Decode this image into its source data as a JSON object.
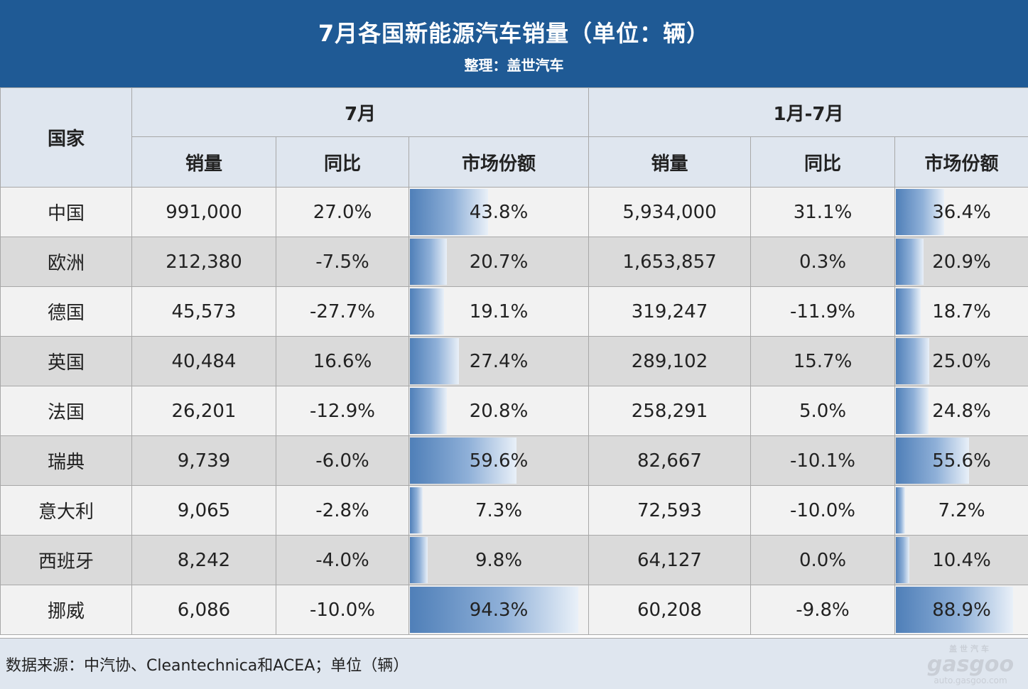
{
  "header": {
    "title": "7月各国新能源汽车销量（单位：辆）",
    "subtitle": "整理：盖世汽车"
  },
  "columns": {
    "country": "国家",
    "period_month": "7月",
    "period_ytd": "1月-7月",
    "sales": "销量",
    "yoy": "同比",
    "share": "市场份额"
  },
  "rows": [
    {
      "country": "中国",
      "jul_sales": "991,000",
      "jul_yoy": "27.0%",
      "jul_yoy_sign": "pos",
      "jul_share": "43.8%",
      "jul_share_value": 43.8,
      "ytd_sales": "5,934,000",
      "ytd_yoy": "31.1%",
      "ytd_yoy_sign": "pos",
      "ytd_share": "36.4%",
      "ytd_share_value": 36.4
    },
    {
      "country": "欧洲",
      "jul_sales": "212,380",
      "jul_yoy": "-7.5%",
      "jul_yoy_sign": "neg",
      "jul_share": "20.7%",
      "jul_share_value": 20.7,
      "ytd_sales": "1,653,857",
      "ytd_yoy": "0.3%",
      "ytd_yoy_sign": "pos",
      "ytd_share": "20.9%",
      "ytd_share_value": 20.9
    },
    {
      "country": "德国",
      "jul_sales": "45,573",
      "jul_yoy": "-27.7%",
      "jul_yoy_sign": "neg",
      "jul_share": "19.1%",
      "jul_share_value": 19.1,
      "ytd_sales": "319,247",
      "ytd_yoy": "-11.9%",
      "ytd_yoy_sign": "neg",
      "ytd_share": "18.7%",
      "ytd_share_value": 18.7
    },
    {
      "country": "英国",
      "jul_sales": "40,484",
      "jul_yoy": "16.6%",
      "jul_yoy_sign": "pos",
      "jul_share": "27.4%",
      "jul_share_value": 27.4,
      "ytd_sales": "289,102",
      "ytd_yoy": "15.7%",
      "ytd_yoy_sign": "pos",
      "ytd_share": "25.0%",
      "ytd_share_value": 25.0
    },
    {
      "country": "法国",
      "jul_sales": "26,201",
      "jul_yoy": "-12.9%",
      "jul_yoy_sign": "neg",
      "jul_share": "20.8%",
      "jul_share_value": 20.8,
      "ytd_sales": "258,291",
      "ytd_yoy": "5.0%",
      "ytd_yoy_sign": "pos",
      "ytd_share": "24.8%",
      "ytd_share_value": 24.8
    },
    {
      "country": "瑞典",
      "jul_sales": "9,739",
      "jul_yoy": "-6.0%",
      "jul_yoy_sign": "neg",
      "jul_share": "59.6%",
      "jul_share_value": 59.6,
      "ytd_sales": "82,667",
      "ytd_yoy": "-10.1%",
      "ytd_yoy_sign": "neg",
      "ytd_share": "55.6%",
      "ytd_share_value": 55.6
    },
    {
      "country": "意大利",
      "jul_sales": "9,065",
      "jul_yoy": "-2.8%",
      "jul_yoy_sign": "neg",
      "jul_share": "7.3%",
      "jul_share_value": 7.3,
      "ytd_sales": "72,593",
      "ytd_yoy": "-10.0%",
      "ytd_yoy_sign": "neg",
      "ytd_share": "7.2%",
      "ytd_share_value": 7.2
    },
    {
      "country": "西班牙",
      "jul_sales": "8,242",
      "jul_yoy": "-4.0%",
      "jul_yoy_sign": "neg",
      "jul_share": "9.8%",
      "jul_share_value": 9.8,
      "ytd_sales": "64,127",
      "ytd_yoy": "0.0%",
      "ytd_yoy_sign": "pos",
      "ytd_share": "10.4%",
      "ytd_share_value": 10.4
    },
    {
      "country": "挪威",
      "jul_sales": "6,086",
      "jul_yoy": "-10.0%",
      "jul_yoy_sign": "neg",
      "jul_share": "94.3%",
      "jul_share_value": 94.3,
      "ytd_sales": "60,208",
      "ytd_yoy": "-9.8%",
      "ytd_yoy_sign": "neg",
      "ytd_share": "88.9%",
      "ytd_share_value": 88.9
    }
  ],
  "footer": {
    "source": "数据来源：中汽协、Cleantechnica和ACEA；单位（辆）",
    "watermark_top": "盖世汽车",
    "watermark_brand": "gasgoo",
    "watermark_url": "auto.gasgoo.com"
  },
  "colors": {
    "header_bg": "#1f5a95",
    "positive": "#e8141e",
    "negative": "#1aa34a",
    "bar": "#4f7fb8"
  }
}
